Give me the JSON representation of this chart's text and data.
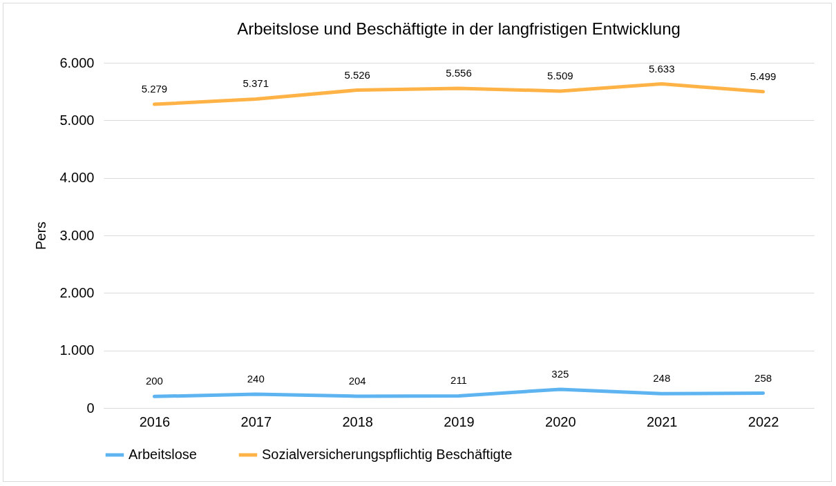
{
  "chart_data": {
    "type": "line",
    "title": "Arbeitslose und Beschäftigte in der langfristigen Entwicklung",
    "ylabel": "Pers",
    "categories": [
      "2016",
      "2017",
      "2018",
      "2019",
      "2020",
      "2021",
      "2022"
    ],
    "series": [
      {
        "name": "Arbeitslose",
        "color": "#5eb4f0",
        "values": [
          200,
          240,
          204,
          211,
          325,
          248,
          258
        ],
        "value_labels": [
          "200",
          "240",
          "204",
          "211",
          "325",
          "248",
          "258"
        ]
      },
      {
        "name": "Sozialversicherungspflichtig Beschäftigte",
        "color": "#ffb347",
        "values": [
          5279,
          5371,
          5526,
          5556,
          5509,
          5633,
          5499
        ],
        "value_labels": [
          "5.279",
          "5.371",
          "5.526",
          "5.556",
          "5.509",
          "5.633",
          "5.499"
        ]
      }
    ],
    "ylim": [
      0,
      6000
    ],
    "yticks": [
      0,
      {
        "value": 1000,
        "label": "1.000"
      },
      {
        "value": 2000,
        "label": "2.000"
      },
      {
        "value": 3000,
        "label": "3.000"
      },
      {
        "value": 4000,
        "label": "4.000"
      },
      {
        "value": 5000,
        "label": "5.000"
      },
      {
        "value": 6000,
        "label": "6.000"
      }
    ],
    "grid": "y",
    "legend": "bottom",
    "marker": "none",
    "line_style": "solid"
  }
}
